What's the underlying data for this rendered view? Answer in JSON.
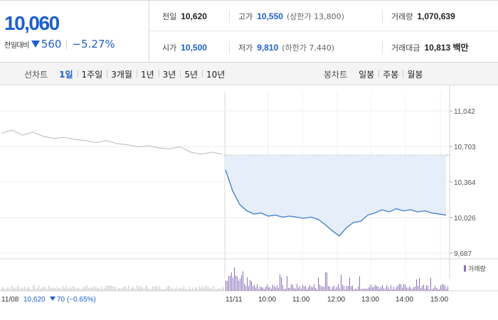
{
  "quote": {
    "price": "10,060",
    "change_label": "전일대비",
    "change": "560",
    "change_pct": "−5.27%"
  },
  "stats": {
    "prev_close": {
      "label": "전일",
      "value": "10,620"
    },
    "high": {
      "label": "고가",
      "value": "10,550",
      "note": "(상한가 13,800)"
    },
    "volume": {
      "label": "거래량",
      "value": "1,070,639"
    },
    "open": {
      "label": "시가",
      "value": "10,500"
    },
    "low": {
      "label": "저가",
      "value": "9,810",
      "note": "(하한가 7,440)"
    },
    "amount": {
      "label": "거래대금",
      "value": "10,813 백만"
    }
  },
  "line_tabs": {
    "title": "선차트",
    "items": [
      "1일",
      "1주일",
      "3개월",
      "1년",
      "3년",
      "5년",
      "10년"
    ],
    "active": 0
  },
  "candle_tabs": {
    "title": "봉차트",
    "items": [
      "일봉",
      "주봉",
      "월봉"
    ]
  },
  "colors": {
    "up": "#1d5fcc",
    "line": "#3d7cc9",
    "fill": "#e6eef9",
    "prev": "#b8b8b8",
    "volume": "#8a70b8"
  },
  "chart_data": {
    "type": "line",
    "y_ticks": [
      "11,042",
      "10,703",
      "10,364",
      "10,026",
      "9,687"
    ],
    "ylim": [
      9687,
      11042
    ],
    "prev_close": 10620,
    "prev_day": {
      "label": "11/08",
      "values": [
        10830,
        10860,
        10810,
        10840,
        10800,
        10780,
        10790,
        10770,
        10760,
        10740,
        10760,
        10730,
        10720,
        10700,
        10710,
        10690,
        10680,
        10700,
        10650,
        10630,
        10650,
        10630
      ]
    },
    "today": {
      "label": "11/11",
      "x_ticks": [
        "10:00",
        "11:00",
        "12:00",
        "13:00",
        "14:00",
        "15:00"
      ],
      "values": [
        10480,
        10280,
        10150,
        10090,
        10060,
        10070,
        10040,
        10050,
        10030,
        10040,
        10030,
        10020,
        10030,
        10010,
        9960,
        9900,
        9850,
        9930,
        9980,
        9990,
        10050,
        10070,
        10100,
        10080,
        10110,
        10090,
        10100,
        10080,
        10090,
        10070,
        10060,
        10050
      ]
    },
    "volume_legend": "거래량",
    "footer_prev": "11/08",
    "footer_close": "10,620",
    "footer_change": "70 (−0.65%)"
  }
}
